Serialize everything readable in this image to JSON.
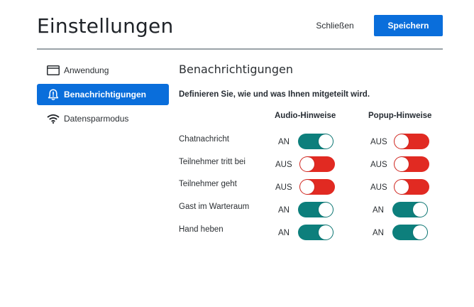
{
  "header": {
    "title": "Einstellungen",
    "close_label": "Schließen",
    "save_label": "Speichern"
  },
  "sidebar": {
    "items": [
      {
        "label": "Anwendung",
        "icon": "window-icon",
        "active": false
      },
      {
        "label": "Benachrichtigungen",
        "icon": "bell-alert-icon",
        "active": true
      },
      {
        "label": "Datensparmodus",
        "icon": "wifi-icon",
        "active": false
      }
    ]
  },
  "main": {
    "title": "Benachrichtigungen",
    "description": "Definieren Sie, wie und was Ihnen mitgeteilt wird.",
    "columns": [
      "Audio-Hinweise",
      "Popup-Hinweise"
    ],
    "rows": [
      {
        "label": "Chatnachricht",
        "audio": "AN",
        "popup": "AUS"
      },
      {
        "label": "Teilnehmer tritt bei",
        "audio": "AUS",
        "popup": "AUS"
      },
      {
        "label": "Teilnehmer geht",
        "audio": "AUS",
        "popup": "AUS"
      },
      {
        "label": "Gast im Warteraum",
        "audio": "AN",
        "popup": "AN"
      },
      {
        "label": "Hand heben",
        "audio": "AN",
        "popup": "AN"
      }
    ]
  },
  "colors": {
    "accent": "#0a6edb",
    "toggle_on": "#0d7f7c",
    "toggle_off": "#e12a22"
  }
}
